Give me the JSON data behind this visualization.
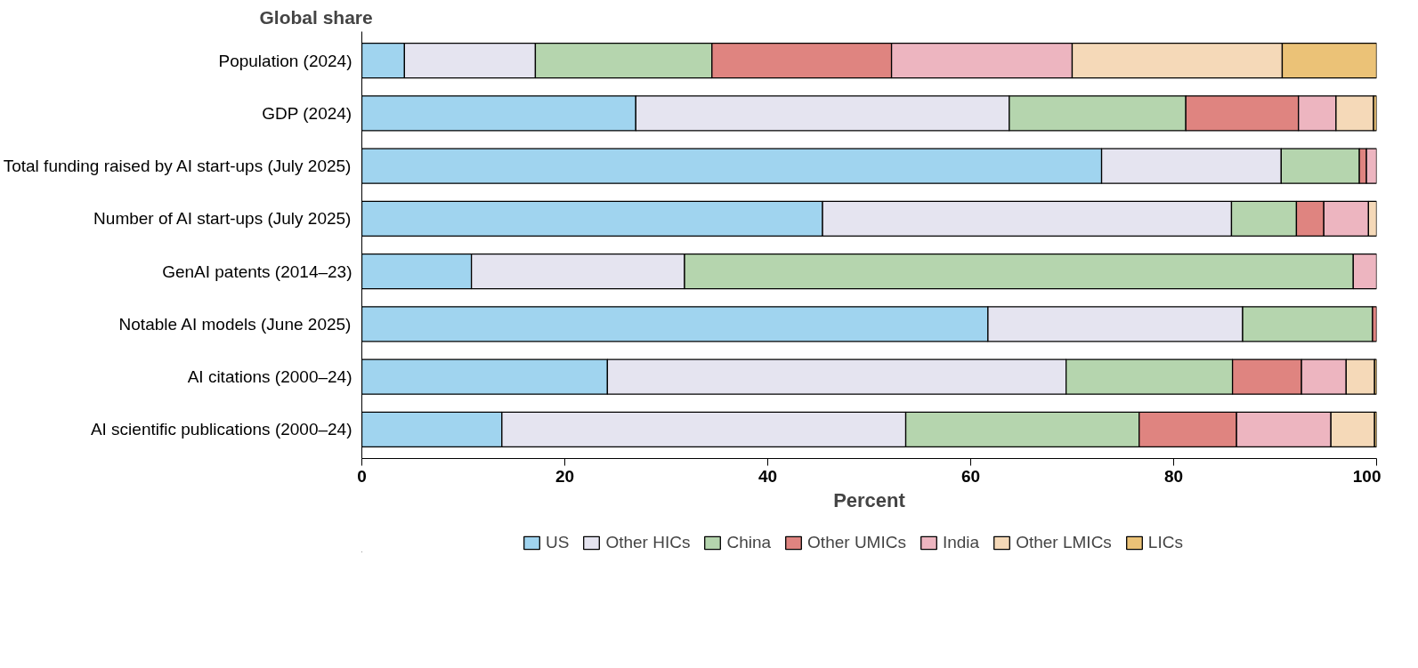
{
  "chart_data": {
    "type": "bar",
    "orientation": "horizontal",
    "stacked": true,
    "title": "Global share",
    "xlabel": "Percent",
    "categories": [
      "Population (2024)",
      "GDP (2024)",
      "Total funding raised by AI start-ups (July 2025)",
      "Number of AI start-ups (July 2025)",
      "GenAI patents (2014–23)",
      "Notable AI models (June 2025)",
      "AI citations (2000–24)",
      "AI scientific publications (2000–24)"
    ],
    "series": [
      {
        "name": "US",
        "color": "#a0d4ef",
        "values": [
          4.2,
          27.0,
          72.9,
          45.4,
          10.8,
          61.7,
          24.2,
          13.8
        ]
      },
      {
        "name": "Other HICs",
        "color": "#e5e4f0",
        "values": [
          12.9,
          36.8,
          17.7,
          40.3,
          21.0,
          25.1,
          45.2,
          39.8
        ]
      },
      {
        "name": "China",
        "color": "#b5d5ae",
        "values": [
          17.4,
          17.4,
          7.7,
          6.4,
          65.9,
          12.8,
          16.4,
          23.0
        ]
      },
      {
        "name": "Other UMICs",
        "color": "#df8480",
        "values": [
          17.7,
          11.1,
          0.7,
          2.7,
          null,
          0.4,
          6.8,
          9.6
        ]
      },
      {
        "name": "India",
        "color": "#edb5c0",
        "values": [
          17.8,
          3.7,
          1.0,
          4.4,
          2.3,
          null,
          4.4,
          9.3
        ]
      },
      {
        "name": "Other LMICs",
        "color": "#f5d9b8",
        "values": [
          20.7,
          3.7,
          null,
          0.8,
          null,
          null,
          2.8,
          4.3
        ]
      },
      {
        "name": "LICs",
        "color": "#ebc277",
        "values": [
          9.3,
          0.3,
          null,
          null,
          null,
          null,
          0.2,
          0.2
        ]
      }
    ],
    "xlim": [
      0,
      100
    ],
    "xticks": [
      0,
      20,
      40,
      60,
      80,
      100
    ],
    "grid": false,
    "legend": "bottom"
  }
}
